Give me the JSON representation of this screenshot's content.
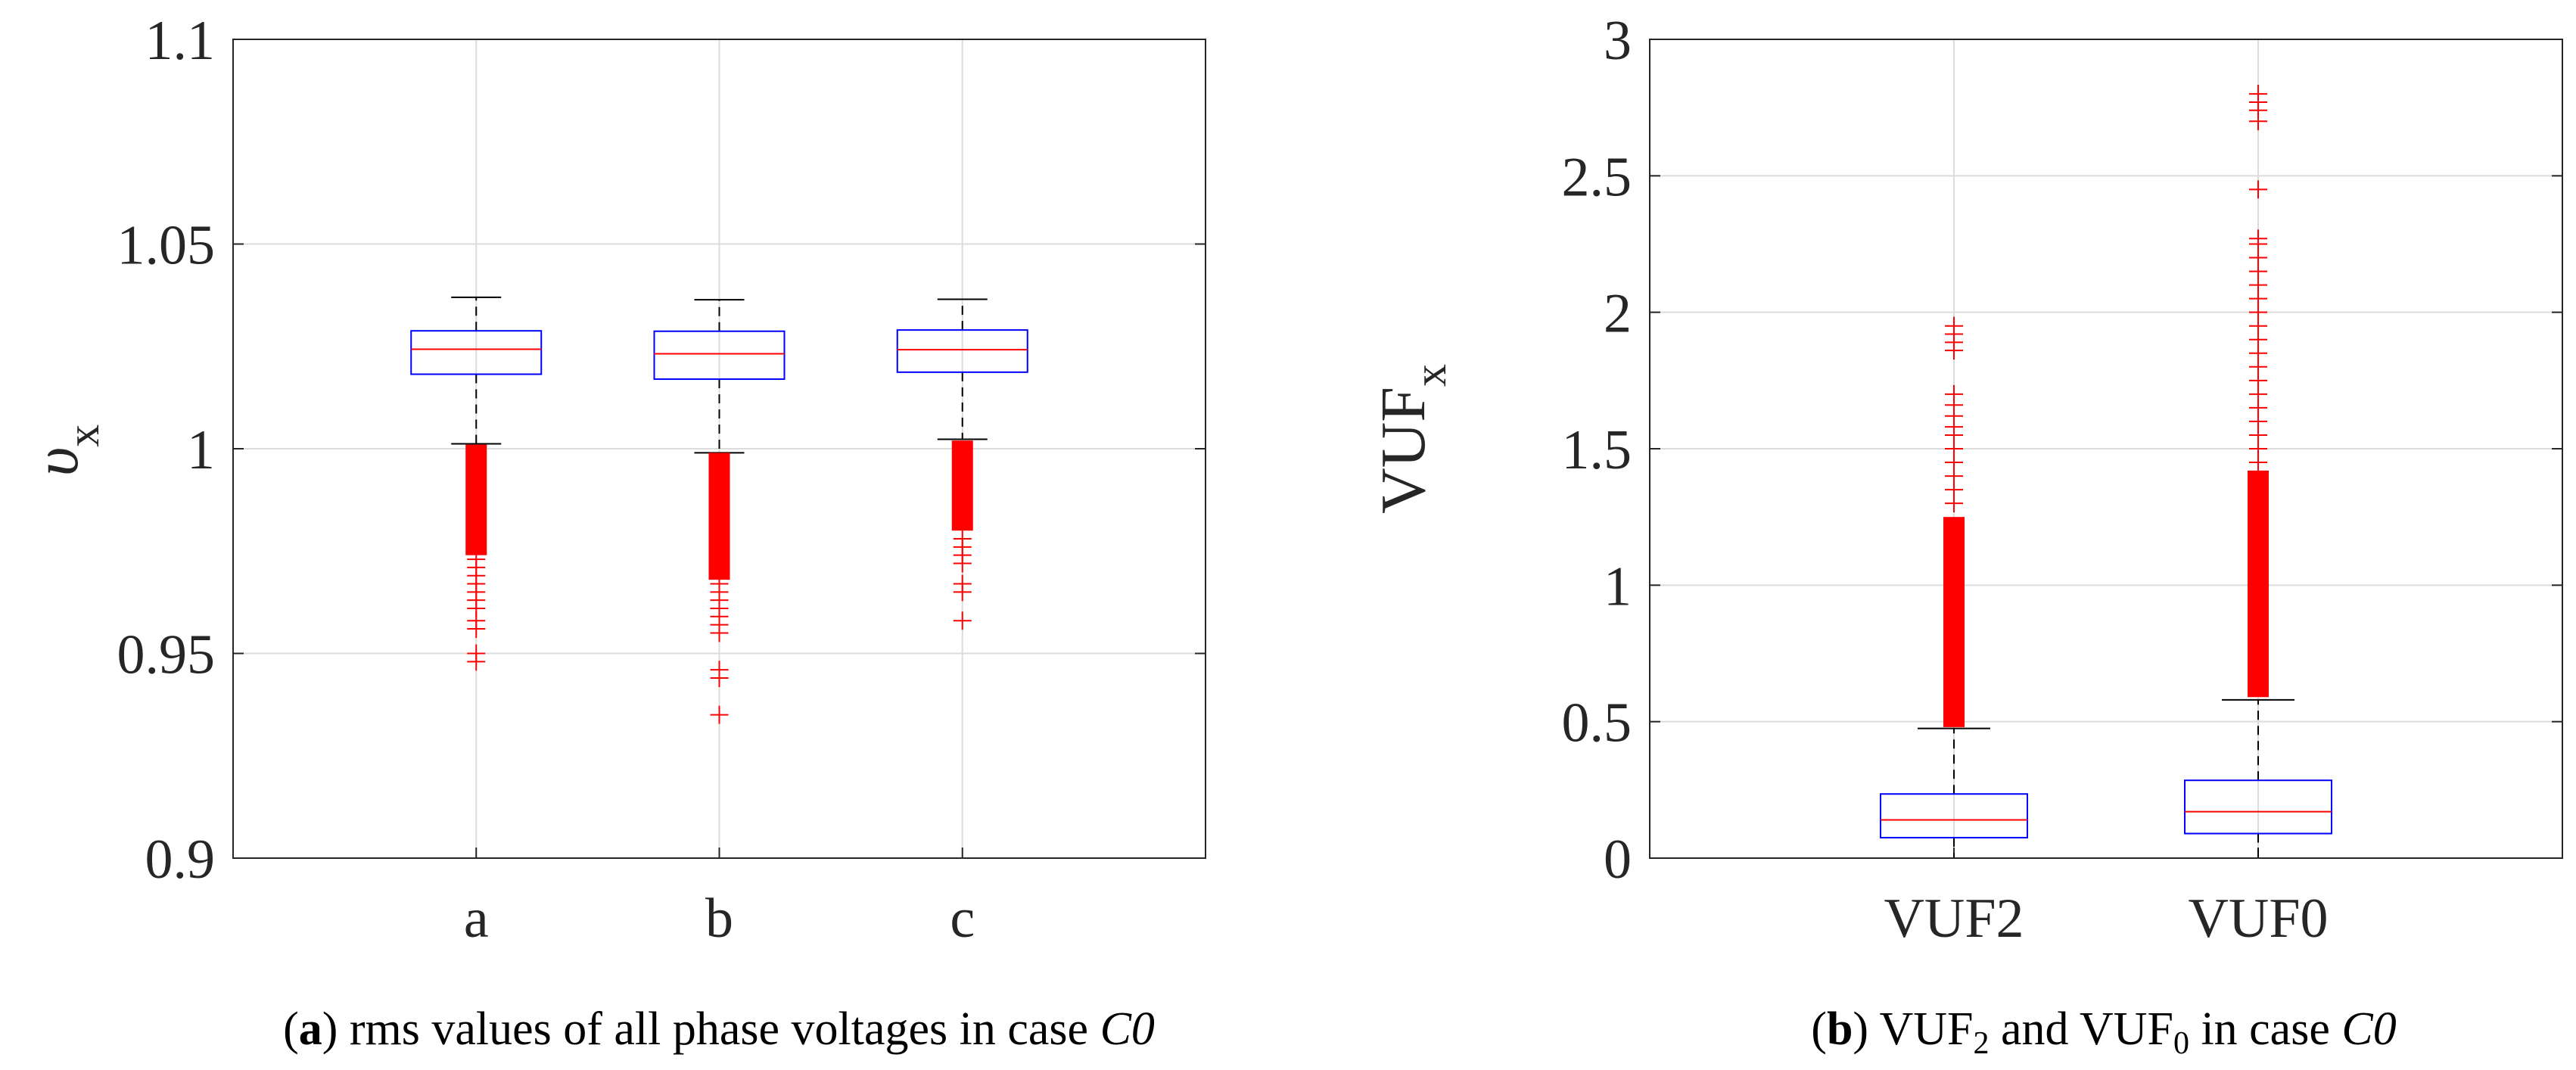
{
  "colors": {
    "box": "#0000ff",
    "median": "#ff0000",
    "outlier": "#ff0000",
    "whisker": "#000000",
    "grid": "#dcdcdc",
    "frame": "#262626"
  },
  "chart_data": [
    {
      "type": "box",
      "id": "a",
      "ylim": [
        0.9,
        1.1
      ],
      "yticks": [
        0.9,
        0.95,
        1,
        1.05,
        1.1
      ],
      "ytick_labels": [
        "0.9",
        "0.95",
        "1",
        "1.05",
        "1.1"
      ],
      "ylabel_main": "υ",
      "ylabel_sub": "x",
      "xlabel": "",
      "grid": true,
      "categories": [
        "a",
        "b",
        "c"
      ],
      "series": [
        {
          "name": "a",
          "whisker_low": 1.0012,
          "q1": 1.0182,
          "median": 1.0243,
          "q3": 1.0288,
          "whisker_high": 1.037,
          "outliers_dense": [
            0.974,
            1.001
          ],
          "outliers": [
            0.973,
            0.971,
            0.969,
            0.967,
            0.965,
            0.963,
            0.961,
            0.958,
            0.956,
            0.95,
            0.948
          ]
        },
        {
          "name": "b",
          "whisker_low": 0.999,
          "q1": 1.017,
          "median": 1.0232,
          "q3": 1.0287,
          "whisker_high": 1.0364,
          "outliers_dense": [
            0.968,
            0.999
          ],
          "outliers": [
            0.967,
            0.965,
            0.963,
            0.961,
            0.959,
            0.957,
            0.955,
            0.946,
            0.944,
            0.935
          ]
        },
        {
          "name": "c",
          "whisker_low": 1.0023,
          "q1": 1.0187,
          "median": 1.0242,
          "q3": 1.029,
          "whisker_high": 1.0365,
          "outliers_dense": [
            0.98,
            1.002
          ],
          "outliers": [
            0.978,
            0.976,
            0.974,
            0.972,
            0.967,
            0.965,
            0.958
          ]
        }
      ],
      "caption_label": "a",
      "caption_text": " rms values of all phase voltages in case ",
      "caption_case": "C0"
    },
    {
      "type": "box",
      "id": "b",
      "ylim": [
        0,
        3
      ],
      "yticks": [
        0,
        0.5,
        1,
        1.5,
        2,
        2.5,
        3
      ],
      "ytick_labels": [
        "0",
        "0.5",
        "1",
        "1.5",
        "2",
        "2.5",
        "3"
      ],
      "ylabel_main": "VUF",
      "ylabel_sub": "x",
      "xlabel": "",
      "grid": true,
      "categories": [
        "VUF2",
        "VUF0"
      ],
      "series": [
        {
          "name": "VUF2",
          "whisker_low": 0.0,
          "q1": 0.075,
          "median": 0.14,
          "q3": 0.235,
          "whisker_high": 0.475,
          "outliers_dense": [
            0.48,
            1.25
          ],
          "outliers": [
            1.3,
            1.35,
            1.4,
            1.45,
            1.5,
            1.55,
            1.58,
            1.62,
            1.66,
            1.7,
            1.86,
            1.89,
            1.92,
            1.95
          ]
        },
        {
          "name": "VUF0",
          "whisker_low": 0.0,
          "q1": 0.09,
          "median": 0.17,
          "q3": 0.285,
          "whisker_high": 0.58,
          "outliers_dense": [
            0.59,
            1.42
          ],
          "outliers": [
            1.45,
            1.5,
            1.55,
            1.6,
            1.65,
            1.7,
            1.75,
            1.8,
            1.85,
            1.9,
            1.95,
            2.0,
            2.05,
            2.1,
            2.15,
            2.2,
            2.25,
            2.27,
            2.45,
            2.7,
            2.74,
            2.77,
            2.8
          ]
        }
      ],
      "caption_label": "b",
      "caption_text_1": " VUF",
      "caption_sub_1": "2",
      "caption_text_2": " and VUF",
      "caption_sub_2": "0",
      "caption_text_3": " in case ",
      "caption_case": "C0"
    }
  ]
}
